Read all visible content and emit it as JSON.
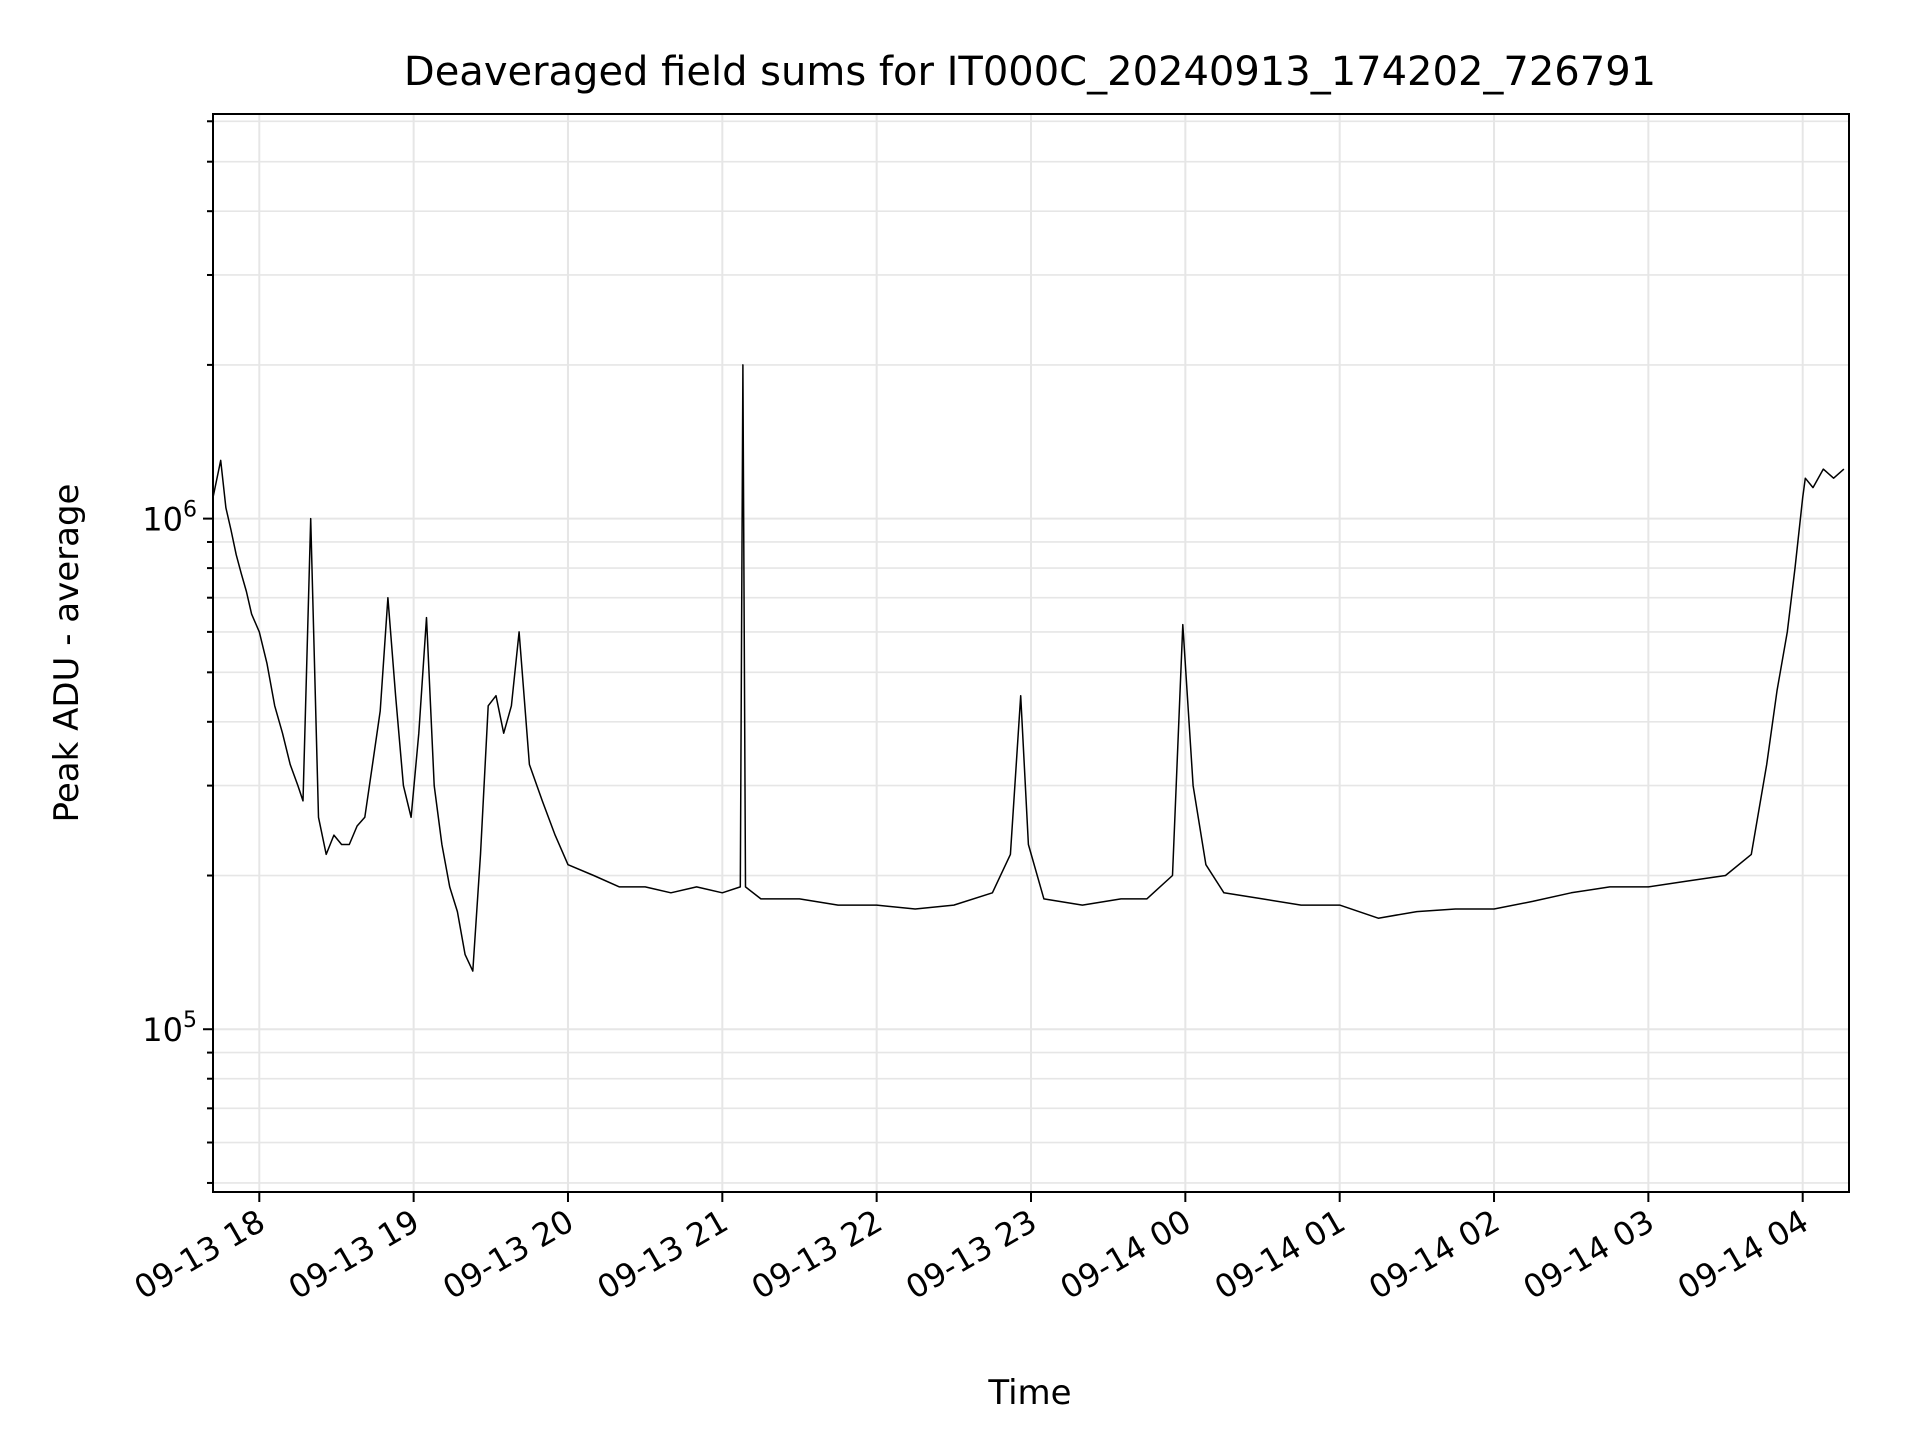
{
  "chart_data": {
    "type": "line",
    "title": "Deaveraged field sums for IT000C_20240913_174202_726791",
    "xlabel": "Time",
    "ylabel": "Peak ADU - average",
    "y_scale": "log",
    "ylim": [
      48000,
      6200000
    ],
    "xlim": [
      "2024-09-13 17:42",
      "2024-09-14 04:18"
    ],
    "grid": true,
    "line_color": "#000000",
    "x_ticks": [
      {
        "t": "2024-09-13 18:00",
        "label": "09-13 18"
      },
      {
        "t": "2024-09-13 19:00",
        "label": "09-13 19"
      },
      {
        "t": "2024-09-13 20:00",
        "label": "09-13 20"
      },
      {
        "t": "2024-09-13 21:00",
        "label": "09-13 21"
      },
      {
        "t": "2024-09-13 22:00",
        "label": "09-13 22"
      },
      {
        "t": "2024-09-13 23:00",
        "label": "09-13 23"
      },
      {
        "t": "2024-09-14 00:00",
        "label": "09-14 00"
      },
      {
        "t": "2024-09-14 01:00",
        "label": "09-14 01"
      },
      {
        "t": "2024-09-14 02:00",
        "label": "09-14 02"
      },
      {
        "t": "2024-09-14 03:00",
        "label": "09-14 03"
      },
      {
        "t": "2024-09-14 04:00",
        "label": "09-14 04"
      }
    ],
    "y_major_ticks": [
      {
        "value": 100000,
        "base": "10",
        "exp": "5"
      },
      {
        "value": 1000000,
        "base": "10",
        "exp": "6"
      }
    ],
    "series": [
      {
        "x": [
          "2024-09-13 17:42",
          "2024-09-13 17:45",
          "2024-09-13 17:47",
          "2024-09-13 17:49",
          "2024-09-13 17:51",
          "2024-09-13 17:53",
          "2024-09-13 17:55",
          "2024-09-13 17:57",
          "2024-09-13 18:00",
          "2024-09-13 18:03",
          "2024-09-13 18:06",
          "2024-09-13 18:09",
          "2024-09-13 18:12",
          "2024-09-13 18:15",
          "2024-09-13 18:17",
          "2024-09-13 18:20",
          "2024-09-13 18:23",
          "2024-09-13 18:26",
          "2024-09-13 18:29",
          "2024-09-13 18:32",
          "2024-09-13 18:35",
          "2024-09-13 18:38",
          "2024-09-13 18:41",
          "2024-09-13 18:44",
          "2024-09-13 18:47",
          "2024-09-13 18:50",
          "2024-09-13 18:53",
          "2024-09-13 18:56",
          "2024-09-13 18:59",
          "2024-09-13 19:02",
          "2024-09-13 19:05",
          "2024-09-13 19:08",
          "2024-09-13 19:11",
          "2024-09-13 19:14",
          "2024-09-13 19:17",
          "2024-09-13 19:20",
          "2024-09-13 19:23",
          "2024-09-13 19:26",
          "2024-09-13 19:29",
          "2024-09-13 19:32",
          "2024-09-13 19:35",
          "2024-09-13 19:38",
          "2024-09-13 19:41",
          "2024-09-13 19:45",
          "2024-09-13 19:50",
          "2024-09-13 19:55",
          "2024-09-13 20:00",
          "2024-09-13 20:10",
          "2024-09-13 20:20",
          "2024-09-13 20:30",
          "2024-09-13 20:40",
          "2024-09-13 20:50",
          "2024-09-13 21:00",
          "2024-09-13 21:07",
          "2024-09-13 21:08",
          "2024-09-13 21:09",
          "2024-09-13 21:15",
          "2024-09-13 21:30",
          "2024-09-13 21:45",
          "2024-09-13 22:00",
          "2024-09-13 22:15",
          "2024-09-13 22:30",
          "2024-09-13 22:45",
          "2024-09-13 22:52",
          "2024-09-13 22:56",
          "2024-09-13 22:59",
          "2024-09-13 23:05",
          "2024-09-13 23:20",
          "2024-09-13 23:35",
          "2024-09-13 23:45",
          "2024-09-13 23:55",
          "2024-09-13 23:59",
          "2024-09-14 00:03",
          "2024-09-14 00:08",
          "2024-09-14 00:15",
          "2024-09-14 00:30",
          "2024-09-14 00:45",
          "2024-09-14 01:00",
          "2024-09-14 01:15",
          "2024-09-14 01:30",
          "2024-09-14 01:45",
          "2024-09-14 02:00",
          "2024-09-14 02:15",
          "2024-09-14 02:30",
          "2024-09-14 02:45",
          "2024-09-14 03:00",
          "2024-09-14 03:15",
          "2024-09-14 03:30",
          "2024-09-14 03:40",
          "2024-09-14 03:46",
          "2024-09-14 03:50",
          "2024-09-14 03:54",
          "2024-09-14 03:57",
          "2024-09-14 04:00",
          "2024-09-14 04:01",
          "2024-09-14 04:04",
          "2024-09-14 04:08",
          "2024-09-14 04:12",
          "2024-09-14 04:16"
        ],
        "y": [
          1100000,
          1300000,
          1050000,
          950000,
          850000,
          780000,
          720000,
          650000,
          600000,
          520000,
          430000,
          380000,
          330000,
          300000,
          280000,
          1000000,
          260000,
          220000,
          240000,
          230000,
          230000,
          250000,
          260000,
          330000,
          420000,
          700000,
          450000,
          300000,
          260000,
          380000,
          640000,
          300000,
          230000,
          190000,
          170000,
          140000,
          130000,
          220000,
          430000,
          450000,
          380000,
          430000,
          600000,
          330000,
          280000,
          240000,
          210000,
          200000,
          190000,
          190000,
          185000,
          190000,
          185000,
          190000,
          2000000,
          190000,
          180000,
          180000,
          175000,
          175000,
          172000,
          175000,
          185000,
          220000,
          450000,
          230000,
          180000,
          175000,
          180000,
          180000,
          200000,
          620000,
          300000,
          210000,
          185000,
          180000,
          175000,
          175000,
          165000,
          170000,
          172000,
          172000,
          178000,
          185000,
          190000,
          190000,
          195000,
          200000,
          220000,
          330000,
          460000,
          600000,
          800000,
          1100000,
          1200000,
          1150000,
          1250000,
          1200000,
          1250000
        ]
      }
    ]
  }
}
